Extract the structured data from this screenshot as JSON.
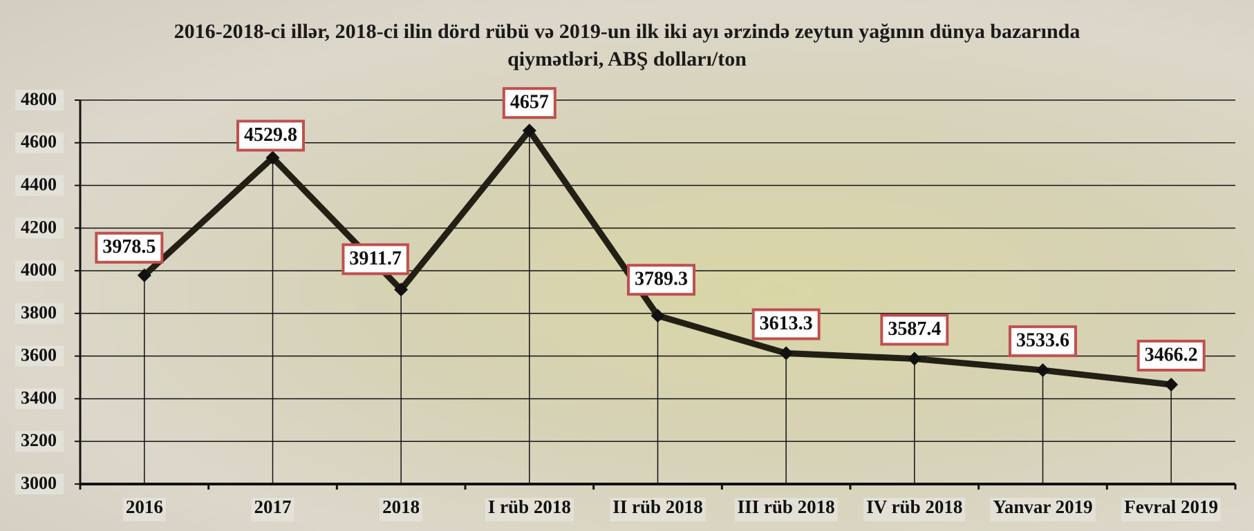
{
  "chart_data": {
    "type": "line",
    "title": "2016-2018-ci illər, 2018-ci ilin dörd rübü və 2019-un ilk iki ayı ərzində zeytun yağının dünya bazarında qiymətləri, ABŞ dolları/ton",
    "categories": [
      "2016",
      "2017",
      "2018",
      "I rüb 2018",
      "II rüb 2018",
      "III rüb 2018",
      "IV rüb 2018",
      "Yanvar 2019",
      "Fevral 2019"
    ],
    "values": [
      3978.5,
      4529.8,
      3911.7,
      4657,
      3789.3,
      3613.3,
      3587.4,
      3533.6,
      3466.2
    ],
    "color": "#221f15",
    "ylim": [
      3000,
      4800
    ],
    "yticks": [
      3000,
      3200,
      3400,
      3600,
      3800,
      4000,
      4200,
      4400,
      4600,
      4800
    ],
    "grid": true
  }
}
